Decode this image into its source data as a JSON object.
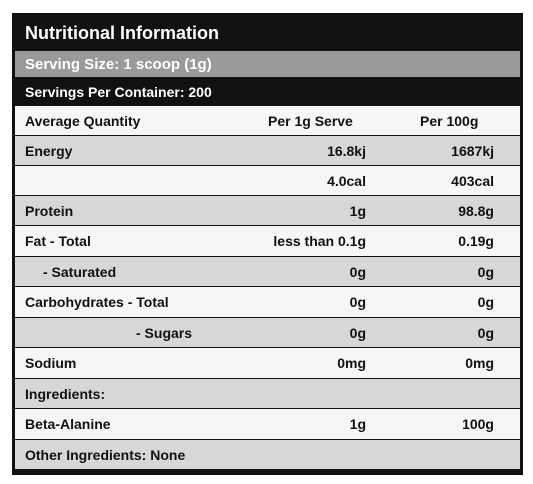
{
  "panel": {
    "title": "Nutritional Information",
    "serving_size": "Serving Size: 1 scoop (1g)",
    "servings_per_container": "Servings Per Container: 200"
  },
  "table": {
    "headers": [
      "Average Quantity",
      "Per 1g Serve",
      "Per 100g"
    ],
    "rows": [
      {
        "label": "Energy",
        "serve": "16.8kj",
        "per100": "1687kj"
      },
      {
        "label": "",
        "serve": "4.0cal",
        "per100": "403cal"
      },
      {
        "label": "Protein",
        "serve": "1g",
        "per100": "98.8g"
      },
      {
        "label": "Fat - Total",
        "serve": "less than 0.1g",
        "per100": "0.19g"
      },
      {
        "label": "- Saturated",
        "serve": "0g",
        "per100": "0g"
      },
      {
        "label": "Carbohydrates - Total",
        "serve": "0g",
        "per100": "0g"
      },
      {
        "label": "- Sugars",
        "serve": "0g",
        "per100": "0g"
      },
      {
        "label": "Sodium",
        "serve": "0mg",
        "per100": "0mg"
      }
    ],
    "ingredients_label": "Ingredients:",
    "ingredients": [
      {
        "label": "Beta-Alanine",
        "serve": "1g",
        "per100": "100g"
      }
    ],
    "other_ingredients": "Other Ingredients: None"
  }
}
